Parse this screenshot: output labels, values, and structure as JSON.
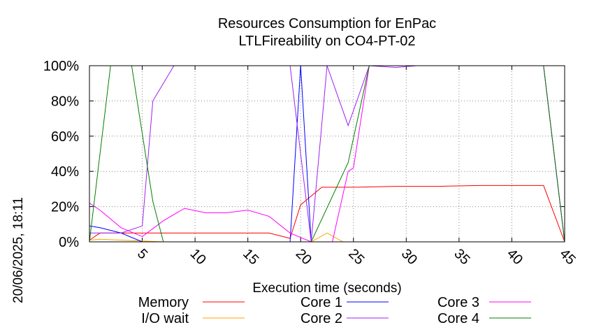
{
  "timestamp": "20/06/2025, 18:11",
  "chart_data": {
    "type": "line",
    "title": "Resources Consumption for EnPac",
    "subtitle": "LTLFireability on CO4-PT-02",
    "xlabel": "Execution time (seconds)",
    "ylabel": "",
    "xlim": [
      0,
      45
    ],
    "ylim": [
      0,
      100
    ],
    "x_ticks": [
      "5",
      "10",
      "15",
      "20",
      "25",
      "30",
      "35",
      "40",
      "45"
    ],
    "y_ticks": [
      "0%",
      "20%",
      "40%",
      "60%",
      "80%",
      "100%"
    ],
    "grid": true,
    "legend_position": "bottom",
    "series": [
      {
        "name": "Memory",
        "color": "#ff0000",
        "points": [
          [
            0,
            1
          ],
          [
            1,
            5
          ],
          [
            3,
            5
          ],
          [
            5,
            5
          ],
          [
            7,
            5
          ],
          [
            9,
            5
          ],
          [
            11,
            5
          ],
          [
            13,
            5
          ],
          [
            15,
            5
          ],
          [
            17,
            5
          ],
          [
            19,
            2
          ],
          [
            20,
            21
          ],
          [
            22,
            31
          ],
          [
            25,
            31
          ],
          [
            29,
            31.5
          ],
          [
            33,
            31.5
          ],
          [
            37,
            32
          ],
          [
            41,
            32
          ],
          [
            43,
            32
          ],
          [
            45,
            0
          ]
        ]
      },
      {
        "name": "I/O wait",
        "color": "#ffa500",
        "points": [
          [
            0,
            1
          ],
          [
            1,
            1.5
          ],
          [
            3,
            1
          ],
          [
            5,
            0.5
          ],
          [
            7,
            0
          ],
          [
            9,
            0
          ],
          [
            19,
            0
          ],
          [
            21,
            0
          ],
          [
            22.5,
            5
          ],
          [
            24,
            0
          ],
          [
            26,
            0
          ],
          [
            45,
            0
          ]
        ]
      },
      {
        "name": "Core 1",
        "color": "#0000ff",
        "points": [
          [
            0,
            9
          ],
          [
            1,
            8
          ],
          [
            3,
            5
          ],
          [
            5,
            0
          ],
          [
            19,
            0
          ],
          [
            20,
            100
          ],
          [
            21,
            0
          ],
          [
            23,
            0
          ],
          [
            45,
            0
          ]
        ]
      },
      {
        "name": "Core 2",
        "color": "#a020f0",
        "points": [
          [
            0,
            5
          ],
          [
            1,
            5
          ],
          [
            3,
            5
          ],
          [
            5,
            9
          ],
          [
            6,
            80
          ],
          [
            8,
            100
          ],
          [
            19,
            100
          ],
          [
            21,
            0
          ],
          [
            22.5,
            100
          ],
          [
            24.5,
            66
          ],
          [
            26.5,
            100
          ],
          [
            29,
            99
          ],
          [
            31,
            100
          ],
          [
            43,
            100
          ],
          [
            45,
            0
          ]
        ]
      },
      {
        "name": "Core 3",
        "color": "#ff00ff",
        "points": [
          [
            0,
            22
          ],
          [
            1,
            18
          ],
          [
            3,
            8
          ],
          [
            5,
            3
          ],
          [
            7,
            12
          ],
          [
            9,
            19
          ],
          [
            11,
            16.5
          ],
          [
            13,
            16.5
          ],
          [
            15,
            18
          ],
          [
            17,
            14.5
          ],
          [
            19,
            5
          ],
          [
            21,
            0
          ],
          [
            23,
            0
          ],
          [
            24.5,
            40
          ],
          [
            25,
            42
          ],
          [
            26.5,
            100
          ],
          [
            43,
            100
          ],
          [
            45,
            0
          ]
        ]
      },
      {
        "name": "Core 4",
        "color": "#008000",
        "points": [
          [
            0,
            0
          ],
          [
            2,
            100
          ],
          [
            4,
            100
          ],
          [
            6,
            23
          ],
          [
            7,
            0
          ],
          [
            19,
            0
          ],
          [
            21,
            0
          ],
          [
            24.5,
            45
          ],
          [
            26.5,
            100
          ],
          [
            43,
            100
          ],
          [
            45,
            0
          ]
        ]
      }
    ]
  }
}
